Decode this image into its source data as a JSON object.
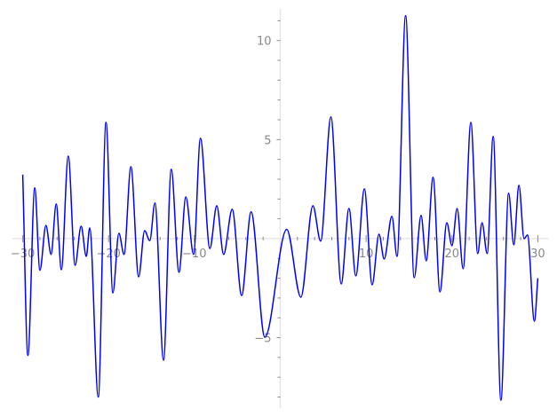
{
  "chart_data": {
    "type": "line",
    "title": "",
    "xlabel": "",
    "ylabel": "",
    "xlim": [
      -31.2,
      31.2
    ],
    "ylim": [
      -8.56,
      11.6
    ],
    "grid": false,
    "axes_through_origin": true,
    "x_ticks": [
      -30,
      -20,
      -10,
      10,
      20,
      30
    ],
    "x_tick_labels": [
      "−30",
      "−20",
      "−10",
      "10",
      "20",
      "30"
    ],
    "y_ticks": [
      10,
      5,
      -5
    ],
    "y_tick_labels": [
      "10",
      "5",
      "−5"
    ],
    "x_minor_step": 2,
    "y_minor_step": 1,
    "colors": {
      "line": "#0000ff",
      "axis": "#e6e6e6",
      "tick": "#888888"
    },
    "series": [
      {
        "x": [
          -30,
          -29.4,
          -28.6,
          -28.0,
          -27.3,
          -26.7,
          -26.1,
          -25.5,
          -24.7,
          -23.9,
          -23.2,
          -22.6,
          -22.2,
          -21.2,
          -20.3,
          -19.5,
          -18.8,
          -18.2,
          -17.4,
          -16.5,
          -15.8,
          -15.2,
          -14.6,
          -13.6,
          -12.7,
          -11.8,
          -11.0,
          -10.1,
          -9.3,
          -8.2,
          -7.4,
          -6.6,
          -5.6,
          -4.5,
          -3.4,
          -1.8,
          0.75,
          2.4,
          3.8,
          4.7,
          5.9,
          7.1,
          8.0,
          8.8,
          9.8,
          10.7,
          11.5,
          12.1,
          13.0,
          13.6,
          14.6,
          15.6,
          16.4,
          17.0,
          17.8,
          18.6,
          19.4,
          20.0,
          20.6,
          21.3,
          22.2,
          23.0,
          23.5,
          24.1,
          24.8,
          25.7,
          26.6,
          27.2,
          27.8,
          28.4,
          28.8,
          29.6,
          30
        ],
        "y": [
          3.23,
          -5.9,
          2.56,
          -1.6,
          0.67,
          -0.8,
          1.75,
          -1.57,
          4.17,
          -1.35,
          0.63,
          -0.9,
          0.54,
          -8.0,
          5.87,
          -2.74,
          0.27,
          -0.8,
          3.63,
          -1.93,
          0.4,
          -0.1,
          1.8,
          -6.14,
          3.5,
          -1.7,
          2.1,
          -0.8,
          5.07,
          -0.5,
          1.66,
          -0.8,
          1.48,
          -2.87,
          1.35,
          -4.98,
          0.47,
          -2.96,
          1.66,
          -0.13,
          6.14,
          -2.29,
          1.52,
          -1.88,
          2.51,
          -2.33,
          0.22,
          -1.03,
          1.12,
          -0.9,
          11.26,
          -1.97,
          1.17,
          -1.12,
          3.1,
          -2.69,
          0.8,
          -0.36,
          1.52,
          -1.52,
          5.87,
          -0.76,
          0.8,
          -0.76,
          5.16,
          -8.16,
          2.29,
          -0.31,
          2.69,
          0,
          0.18,
          -4.17,
          -2.0
        ]
      }
    ]
  }
}
